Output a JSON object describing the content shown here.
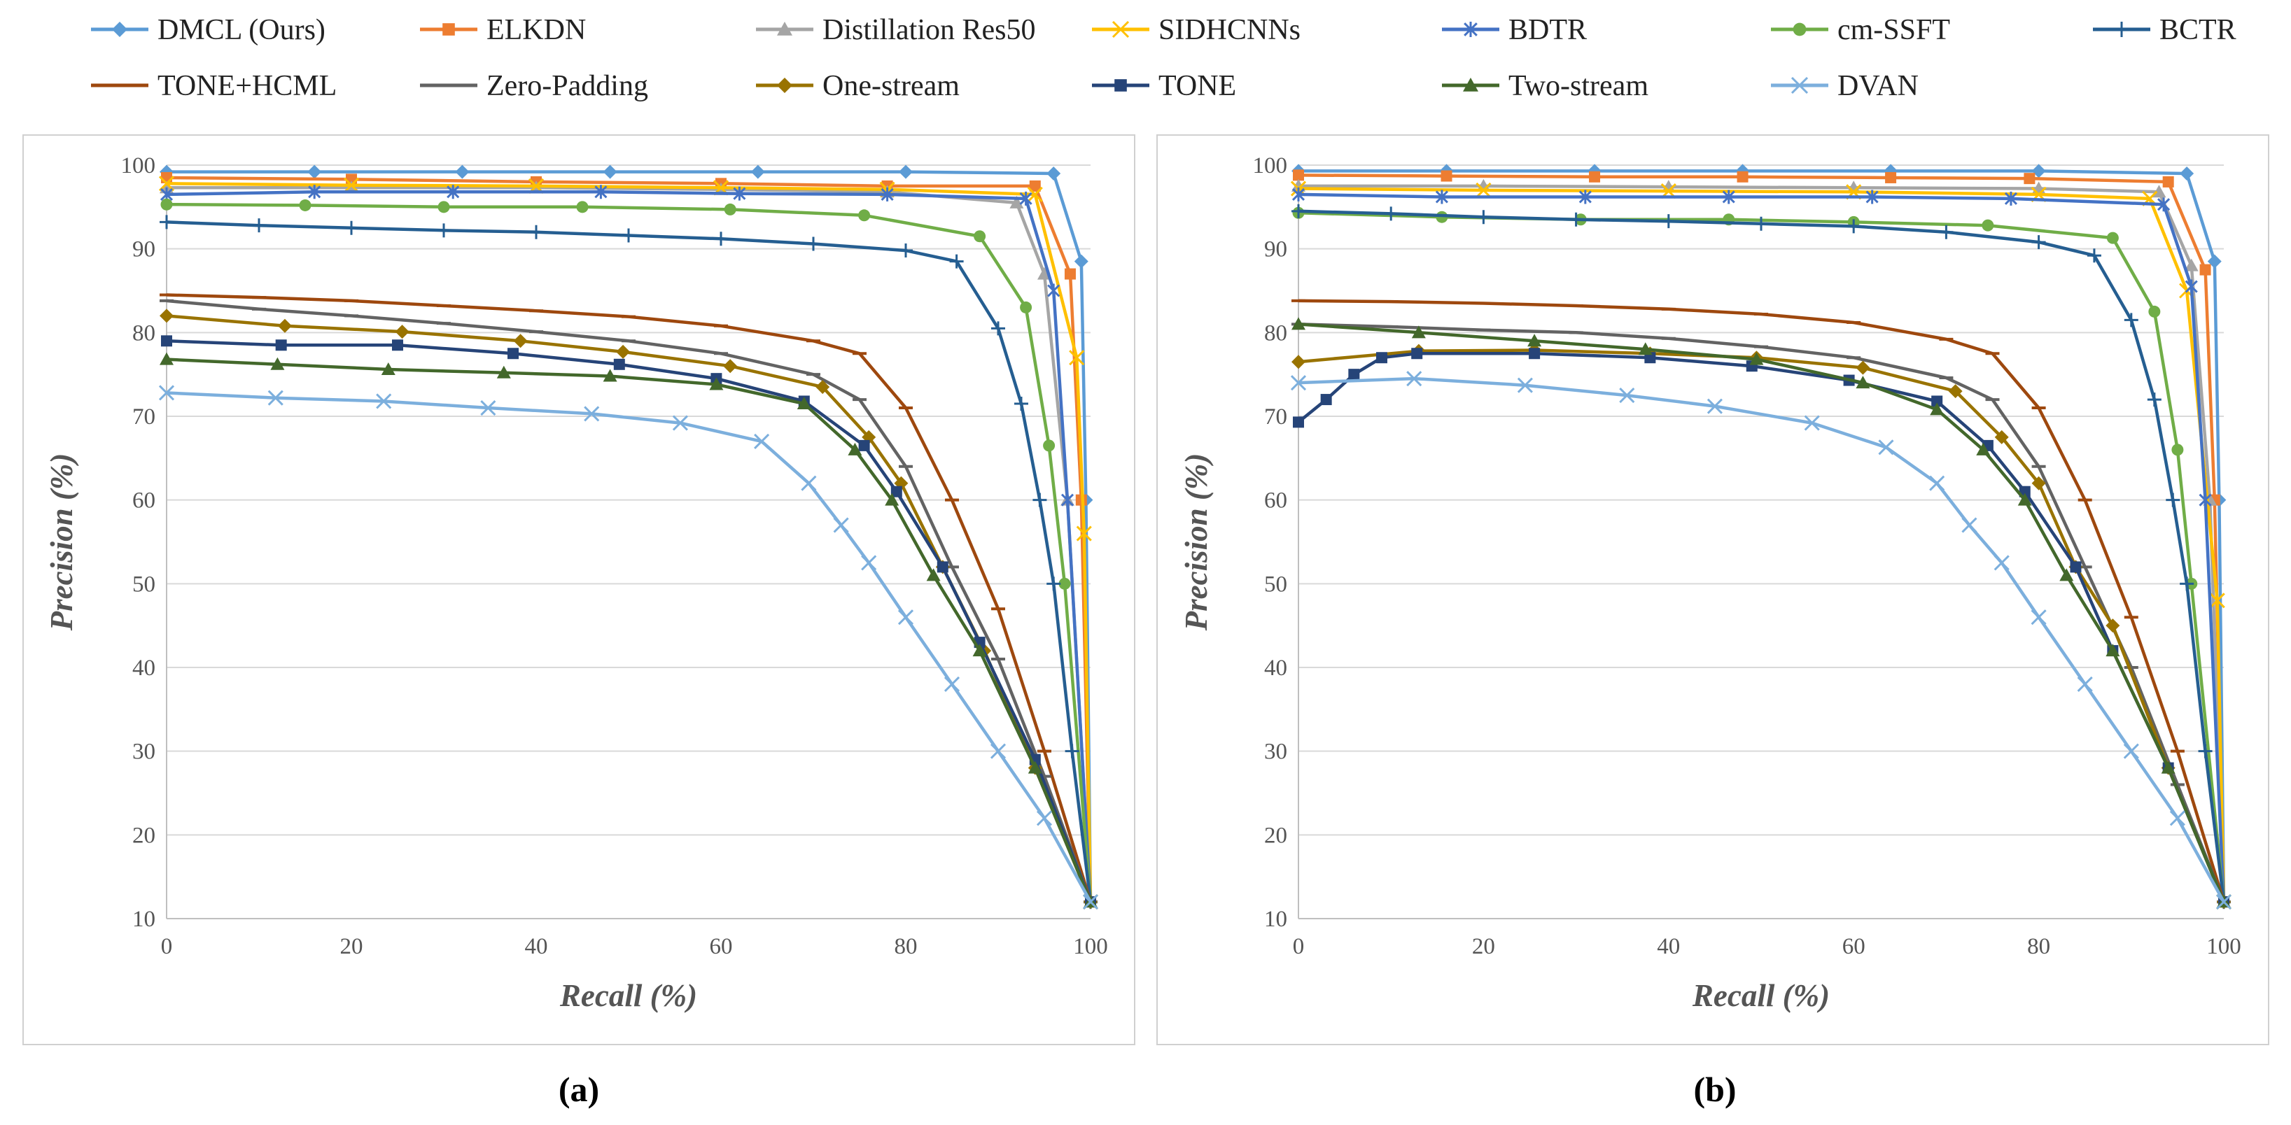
{
  "figure": {
    "panel_labels": [
      "(a)",
      "(b)"
    ]
  },
  "legend": [
    {
      "name": "DMCL (Ours)",
      "color": "#5B9BD5",
      "marker": "diamond"
    },
    {
      "name": "ELKDN",
      "color": "#ED7D31",
      "marker": "square"
    },
    {
      "name": "Distillation Res50",
      "color": "#A5A5A5",
      "marker": "triangle"
    },
    {
      "name": "SIDHCNNs",
      "color": "#FFC000",
      "marker": "x"
    },
    {
      "name": "BDTR",
      "color": "#4472C4",
      "marker": "star"
    },
    {
      "name": "cm-SSFT",
      "color": "#70AD47",
      "marker": "circle"
    },
    {
      "name": "BCTR",
      "color": "#255E91",
      "marker": "plus"
    },
    {
      "name": "TONE+HCML",
      "color": "#9E480E",
      "marker": "dash"
    },
    {
      "name": "Zero-Padding",
      "color": "#636363",
      "marker": "dash"
    },
    {
      "name": "One-stream",
      "color": "#997300",
      "marker": "diamond"
    },
    {
      "name": "TONE",
      "color": "#264478",
      "marker": "square"
    },
    {
      "name": "Two-stream",
      "color": "#43682B",
      "marker": "triangle"
    },
    {
      "name": "DVAN",
      "color": "#7CAFDD",
      "marker": "x"
    }
  ],
  "chart_data": [
    {
      "type": "line",
      "panel": "(a)",
      "title": "",
      "xlabel": "Recall (%)",
      "ylabel": "Precision (%)",
      "xlim": [
        0,
        100
      ],
      "ylim": [
        10,
        100
      ],
      "xticks": [
        0,
        20,
        40,
        60,
        80,
        100
      ],
      "yticks": [
        10,
        20,
        30,
        40,
        50,
        60,
        70,
        80,
        90,
        100
      ],
      "grid": "horizontal",
      "series": [
        {
          "name": "DMCL (Ours)",
          "x": [
            0,
            16,
            32,
            48,
            64,
            80,
            96,
            99,
            99.5,
            100
          ],
          "y": [
            99.2,
            99.2,
            99.2,
            99.2,
            99.2,
            99.2,
            99.0,
            88.5,
            60,
            12
          ]
        },
        {
          "name": "ELKDN",
          "x": [
            0,
            20,
            40,
            60,
            78,
            94,
            97.8,
            99,
            100
          ],
          "y": [
            98.5,
            98.3,
            98.0,
            97.8,
            97.5,
            97.5,
            87,
            60,
            12
          ]
        },
        {
          "name": "Distillation Res50",
          "x": [
            0,
            20,
            40,
            60,
            78,
            92,
            95,
            97.5,
            100
          ],
          "y": [
            97.3,
            97.3,
            97.3,
            97.1,
            96.8,
            95.5,
            87,
            60,
            12
          ]
        },
        {
          "name": "SIDHCNNs",
          "x": [
            0,
            20,
            40,
            60,
            78,
            94,
            98.5,
            99.3,
            100
          ],
          "y": [
            97.8,
            97.6,
            97.5,
            97.3,
            97.1,
            96.5,
            77,
            56,
            12
          ]
        },
        {
          "name": "BDTR",
          "x": [
            0,
            16,
            31,
            47,
            62,
            78,
            93,
            96,
            97.5,
            100
          ],
          "y": [
            96.5,
            96.8,
            96.8,
            96.8,
            96.6,
            96.5,
            96,
            85,
            60,
            12
          ]
        },
        {
          "name": "cm-SSFT",
          "x": [
            0,
            15,
            30,
            45,
            61,
            75.5,
            88,
            93,
            95.5,
            97.2,
            100
          ],
          "y": [
            95.3,
            95.2,
            95.0,
            95.0,
            94.7,
            94.0,
            91.5,
            83,
            66.5,
            50,
            12
          ]
        },
        {
          "name": "BCTR",
          "x": [
            0,
            10,
            20,
            30,
            40,
            50,
            60,
            70,
            80,
            85.5,
            90,
            92.5,
            94.5,
            96,
            98,
            100
          ],
          "y": [
            93.2,
            92.8,
            92.5,
            92.2,
            92.0,
            91.6,
            91.2,
            90.6,
            89.8,
            88.5,
            80.5,
            71.5,
            60,
            50,
            30,
            12
          ]
        },
        {
          "name": "TONE+HCML",
          "x": [
            0,
            10,
            20,
            30,
            40,
            50,
            60,
            70,
            75,
            80,
            85,
            90,
            95,
            100
          ],
          "y": [
            84.5,
            84.2,
            83.8,
            83.2,
            82.6,
            81.9,
            80.8,
            79,
            77.5,
            71,
            60,
            47,
            30,
            12
          ]
        },
        {
          "name": "Zero-Padding",
          "x": [
            0,
            10,
            20,
            30,
            40,
            50,
            60,
            70,
            75,
            80,
            85,
            90,
            95,
            100
          ],
          "y": [
            83.8,
            82.8,
            82.0,
            81.1,
            80.1,
            79.0,
            77.5,
            75.0,
            72,
            64,
            52,
            41,
            27,
            12
          ]
        },
        {
          "name": "One-stream",
          "x": [
            0,
            12.8,
            25.5,
            38.3,
            49.4,
            61,
            71,
            76,
            79.5,
            84,
            88.5,
            94,
            100
          ],
          "y": [
            82,
            80.8,
            80.1,
            79.0,
            77.7,
            76.0,
            73.5,
            67.5,
            62,
            52,
            42,
            28,
            12
          ]
        },
        {
          "name": "TONE",
          "x": [
            0,
            12.4,
            25,
            37.5,
            49,
            59.5,
            69,
            75.5,
            79,
            84,
            88,
            94,
            100
          ],
          "y": [
            79,
            78.5,
            78.5,
            77.5,
            76.2,
            74.5,
            71.8,
            66.5,
            61,
            52,
            43,
            29,
            12
          ]
        },
        {
          "name": "Two-stream",
          "x": [
            0,
            12,
            24,
            36.5,
            48,
            59.5,
            69,
            74.5,
            78.5,
            83,
            88,
            94,
            100
          ],
          "y": [
            76.8,
            76.2,
            75.6,
            75.2,
            74.8,
            73.8,
            71.5,
            66,
            60,
            51,
            42,
            28,
            12
          ]
        },
        {
          "name": "DVAN",
          "x": [
            0,
            11.8,
            23.5,
            34.8,
            46,
            55.6,
            64.4,
            69.5,
            73,
            76,
            80,
            85,
            90,
            95,
            100
          ],
          "y": [
            72.8,
            72.2,
            71.8,
            71.0,
            70.3,
            69.2,
            67.0,
            62.0,
            57,
            52.5,
            46,
            38,
            30,
            22,
            12
          ]
        }
      ]
    },
    {
      "type": "line",
      "panel": "(b)",
      "title": "",
      "xlabel": "Recall (%)",
      "ylabel": "Precision (%)",
      "xlim": [
        0,
        100
      ],
      "ylim": [
        10,
        100
      ],
      "xticks": [
        0,
        20,
        40,
        60,
        80,
        100
      ],
      "yticks": [
        10,
        20,
        30,
        40,
        50,
        60,
        70,
        80,
        90,
        100
      ],
      "grid": "horizontal",
      "series": [
        {
          "name": "DMCL (Ours)",
          "x": [
            0,
            16,
            32,
            48,
            64,
            80,
            96,
            99,
            99.5,
            100
          ],
          "y": [
            99.3,
            99.3,
            99.3,
            99.3,
            99.3,
            99.3,
            99.0,
            88.5,
            60,
            12
          ]
        },
        {
          "name": "ELKDN",
          "x": [
            0,
            16,
            32,
            48,
            64,
            79,
            94,
            98,
            99,
            100
          ],
          "y": [
            98.8,
            98.7,
            98.6,
            98.6,
            98.5,
            98.4,
            98.0,
            87.5,
            60,
            12
          ]
        },
        {
          "name": "Distillation Res50",
          "x": [
            0,
            20,
            40,
            60,
            80,
            93,
            96.5,
            98.5,
            100
          ],
          "y": [
            97.5,
            97.5,
            97.4,
            97.3,
            97.2,
            96.8,
            88,
            60,
            12
          ]
        },
        {
          "name": "SIDHCNNs",
          "x": [
            0,
            20,
            40,
            60,
            80,
            92,
            96,
            99.3,
            100
          ],
          "y": [
            97.2,
            97.0,
            96.9,
            96.8,
            96.5,
            96.0,
            85,
            48,
            12
          ]
        },
        {
          "name": "BDTR",
          "x": [
            0,
            15.5,
            31,
            46.5,
            62,
            77,
            93.5,
            96.5,
            98,
            100
          ],
          "y": [
            96.5,
            96.2,
            96.2,
            96.2,
            96.2,
            96.0,
            95.3,
            85.5,
            60,
            12
          ]
        },
        {
          "name": "cm-SSFT",
          "x": [
            0,
            15.5,
            30.5,
            46.5,
            60,
            74.5,
            88,
            92.5,
            95,
            96.5,
            100
          ],
          "y": [
            94.3,
            93.8,
            93.5,
            93.5,
            93.2,
            92.8,
            91.3,
            82.5,
            66,
            50,
            12
          ]
        },
        {
          "name": "BCTR",
          "x": [
            0,
            10,
            20,
            30,
            40,
            50,
            60,
            70,
            80,
            86,
            90,
            92.5,
            94.5,
            96,
            98,
            100
          ],
          "y": [
            94.5,
            94.2,
            93.8,
            93.5,
            93.3,
            93.0,
            92.7,
            92.0,
            90.8,
            89.2,
            81.5,
            72,
            60,
            50,
            30,
            12
          ]
        },
        {
          "name": "TONE+HCML",
          "x": [
            0,
            10,
            20,
            30,
            40,
            50,
            60,
            70,
            75,
            80,
            85,
            90,
            95,
            100
          ],
          "y": [
            83.8,
            83.7,
            83.5,
            83.2,
            82.8,
            82.2,
            81.2,
            79.2,
            77.5,
            71,
            60,
            46,
            30,
            12
          ]
        },
        {
          "name": "Zero-Padding",
          "x": [
            0,
            10,
            20,
            30,
            40,
            50,
            60,
            70,
            75,
            80,
            85,
            90,
            95,
            100
          ],
          "y": [
            81,
            80.7,
            80.3,
            80.0,
            79.3,
            78.3,
            77.0,
            74.6,
            72,
            64,
            52,
            40,
            26,
            12
          ]
        },
        {
          "name": "One-stream",
          "x": [
            0,
            13,
            25.5,
            38,
            49.5,
            61,
            71,
            76,
            80,
            84,
            88,
            94,
            100
          ],
          "y": [
            76.5,
            77.8,
            77.9,
            77.5,
            77.0,
            75.8,
            73.0,
            67.5,
            62,
            52,
            45,
            28,
            12
          ]
        },
        {
          "name": "TONE",
          "x": [
            0,
            3,
            6,
            9,
            12.8,
            25.5,
            38,
            49,
            59.5,
            69,
            74.5,
            78.5,
            84,
            88,
            94,
            100
          ],
          "y": [
            69.3,
            72,
            75,
            77,
            77.5,
            77.5,
            77.0,
            76.0,
            74.3,
            71.8,
            66.5,
            61,
            52,
            42,
            28,
            12
          ]
        },
        {
          "name": "Two-stream",
          "x": [
            0,
            13,
            25.5,
            37.5,
            49.5,
            61,
            69,
            74,
            78.5,
            83,
            88,
            94,
            100
          ],
          "y": [
            81,
            80,
            79,
            78,
            76.8,
            74.0,
            70.8,
            66,
            60,
            51,
            42,
            28,
            12
          ]
        },
        {
          "name": "DVAN",
          "x": [
            0,
            12.5,
            24.5,
            35.5,
            45,
            55.5,
            63.5,
            69,
            72.5,
            76,
            80,
            85,
            90,
            95,
            100
          ],
          "y": [
            74.0,
            74.5,
            73.7,
            72.5,
            71.2,
            69.2,
            66.3,
            62.0,
            57,
            52.5,
            46,
            38,
            30,
            22,
            12
          ]
        }
      ]
    }
  ]
}
